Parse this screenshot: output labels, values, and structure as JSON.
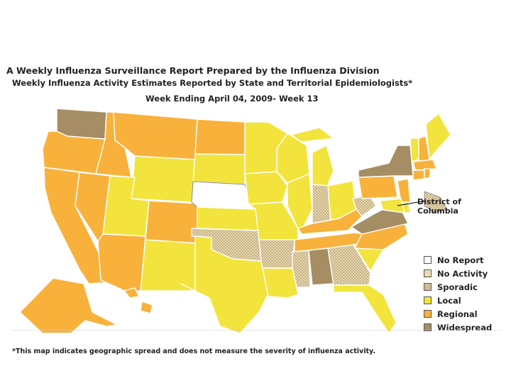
{
  "header": {
    "title": "A Weekly Influenza Surveillance Report Prepared by the Influenza Division",
    "subtitle": "Weekly Influenza Activity Estimates Reported by State and Territorial Epidemiologists*",
    "week": "Week Ending April 04, 2009- Week 13"
  },
  "dc_label_line1": "District of",
  "dc_label_line2": "Columbia",
  "colors": {
    "No Report": "#ffffff",
    "No Activity": "#f6e9c2",
    "Sporadic": "#e4d3a6",
    "Local": "#f2e43c",
    "Regional": "#f8b13a",
    "Widespread": "#a58d64",
    "border": "#ffffff"
  },
  "legend": {
    "items": [
      {
        "label": "No Report",
        "category": "No Report"
      },
      {
        "label": "No Activity",
        "category": "No Activity"
      },
      {
        "label": "Sporadic",
        "category": "Sporadic"
      },
      {
        "label": "Local",
        "category": "Local"
      },
      {
        "label": "Regional",
        "category": "Regional"
      },
      {
        "label": "Widespread",
        "category": "Widespread"
      }
    ]
  },
  "states": {
    "WA": "Widespread",
    "OR": "Regional",
    "CA": "Regional",
    "NV": "Regional",
    "ID": "Regional",
    "MT": "Regional",
    "WY": "Local",
    "UT": "Local",
    "AZ": "Regional",
    "CO": "Regional",
    "NM": "Local",
    "ND": "Regional",
    "SD": "Local",
    "NE": "No Report",
    "KS": "Local",
    "OK": "Sporadic",
    "TX": "Local",
    "MN": "Local",
    "IA": "Local",
    "MO": "Local",
    "AR": "Sporadic",
    "LA": "Local",
    "WI": "Local",
    "IL": "Local",
    "MI": "Local",
    "IN": "Sporadic",
    "OH": "Local",
    "KY": "Regional",
    "TN": "Regional",
    "MS": "Sporadic",
    "AL": "Widespread",
    "GA": "Sporadic",
    "FL": "Local",
    "SC": "Local",
    "NC": "Regional",
    "VA": "Widespread",
    "WV": "Sporadic",
    "PA": "Regional",
    "NY": "Widespread",
    "VT": "Local",
    "NH": "Regional",
    "ME": "Local",
    "MA": "Regional",
    "CT": "Regional",
    "RI": "Regional",
    "NJ": "Regional",
    "DE": "Local",
    "MD": "Local",
    "DC": "Sporadic",
    "AK": "Regional",
    "HI": "Regional"
  },
  "footnote": "*This map indicates geographic spread and does not measure the severity of influenza activity."
}
